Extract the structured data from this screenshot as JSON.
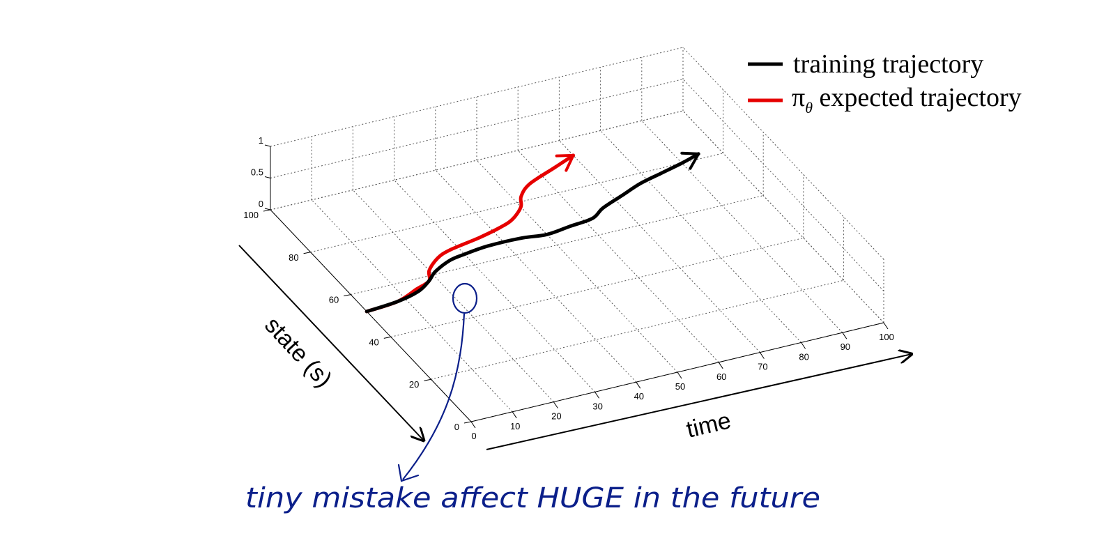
{
  "chart_data": {
    "type": "line",
    "projection": "3d",
    "xlabel": "time",
    "ylabel": "state (s)",
    "xlim": [
      0,
      100
    ],
    "ylim": [
      0,
      100
    ],
    "zlim": [
      0,
      1
    ],
    "x_ticks": [
      "0",
      "10",
      "20",
      "30",
      "40",
      "50",
      "60",
      "70",
      "80",
      "90",
      "100"
    ],
    "y_ticks": [
      "0",
      "20",
      "40",
      "60",
      "80",
      "100"
    ],
    "z_ticks": [
      "0",
      "0.5",
      "1"
    ],
    "grid": true,
    "legend_position": "top-right",
    "series": [
      {
        "name": "training trajectory",
        "color": "#000000",
        "x": [
          0,
          8,
          14,
          18,
          21,
          26,
          30,
          36,
          44,
          50,
          56,
          62,
          66,
          72,
          78,
          84,
          90,
          95
        ],
        "y": [
          52,
          53,
          55,
          58,
          61,
          64,
          65,
          66,
          66,
          65,
          66,
          67,
          70,
          73,
          76,
          78,
          80,
          82
        ]
      },
      {
        "name": "π_θ expected trajectory",
        "color": "#e60000",
        "x": [
          0,
          8,
          14,
          18,
          20,
          24,
          28,
          36,
          42,
          46,
          50,
          52,
          56,
          64,
          70
        ],
        "y": [
          52,
          53,
          56,
          58,
          62,
          66,
          68,
          70,
          72,
          74,
          78,
          82,
          86,
          90,
          93
        ]
      }
    ],
    "legend": [
      {
        "label": "training trajectory",
        "color": "#000000"
      },
      {
        "label": "π",
        "subscript": "θ",
        "suffix": " expected trajectory",
        "color": "#e60000"
      }
    ],
    "annotation": "tiny mistake affect HUGE in the future",
    "annotation_color": "#0b1f8a"
  }
}
